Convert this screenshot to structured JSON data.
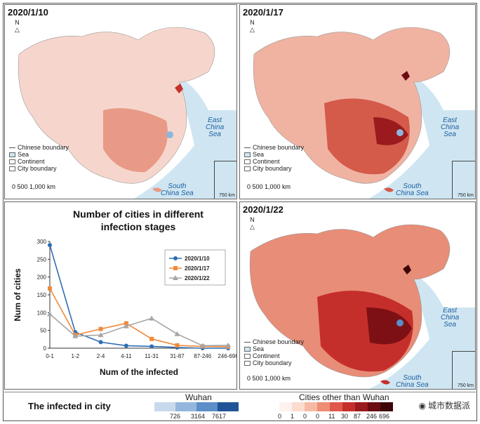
{
  "panels": [
    {
      "date": "2020/1/10",
      "intensity": 0.25
    },
    {
      "date": "2020/1/17",
      "intensity": 0.55
    },
    {
      "date": "2020/1/22",
      "intensity": 0.85
    }
  ],
  "map_labels": {
    "north": "N",
    "east_sea": "East\nChina\nSea",
    "south_sea": "South\nChina Sea",
    "scale": "0     500   1,000 km",
    "inset_scale": "750 km"
  },
  "map_legend": [
    {
      "label": "Chinese boundary",
      "symbol": "line",
      "color": "#555555"
    },
    {
      "label": "Sea",
      "symbol": "fill",
      "color": "#cfe6f2"
    },
    {
      "label": "Continent",
      "symbol": "fill",
      "color": "#ffffff"
    },
    {
      "label": "City boundary",
      "symbol": "box",
      "color": "#ffffff"
    }
  ],
  "chart_data": {
    "type": "line",
    "title": "Number of cities in different infection stages",
    "xlabel": "Num of the infected",
    "ylabel": "Num of cities",
    "categories": [
      "0-1",
      "1-2",
      "2-4",
      "4-11",
      "11-31",
      "31-87",
      "87-246",
      "246-696"
    ],
    "ylim": [
      0,
      300
    ],
    "yticks": [
      0,
      50,
      100,
      150,
      200,
      250,
      300
    ],
    "legend_position": "top-right",
    "series": [
      {
        "name": "2020/1/10",
        "color": "#2e6db4",
        "marker": "circle",
        "values": [
          290,
          45,
          17,
          7,
          5,
          2,
          0,
          0
        ]
      },
      {
        "name": "2020/1/17",
        "color": "#f08a3c",
        "marker": "square",
        "values": [
          168,
          37,
          54,
          70,
          26,
          8,
          5,
          4
        ]
      },
      {
        "name": "2020/1/22",
        "color": "#a6a6a6",
        "marker": "triangle",
        "values": [
          96,
          34,
          37,
          62,
          84,
          40,
          7,
          8
        ]
      }
    ]
  },
  "bottom_legend": {
    "title": "The infected in city",
    "wuhan_label": "Wuhan",
    "wuhan_colors": [
      "#c9d9ec",
      "#93b6dc",
      "#5c8ec7",
      "#1f5596"
    ],
    "wuhan_ticks": [
      "726",
      "3164",
      "7617"
    ],
    "other_label": "Cities other than Wuhan",
    "other_colors": [
      "#fdf2ee",
      "#fbdccf",
      "#f6b9a4",
      "#ee8c74",
      "#e0584a",
      "#c52f2b",
      "#9a1a1d",
      "#6b0d12",
      "#3c0508"
    ],
    "other_ticks": [
      "0",
      "1",
      "0",
      "0",
      "11",
      "30",
      "87",
      "246",
      "696"
    ]
  },
  "watermark": "城市数据派"
}
